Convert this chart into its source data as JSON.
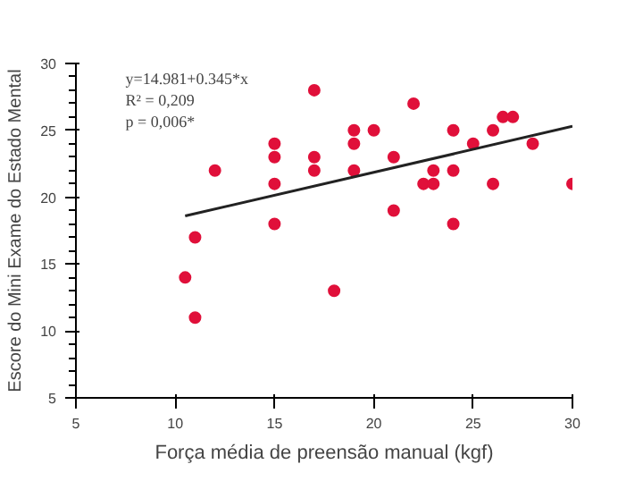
{
  "chart_data": {
    "type": "scatter",
    "xlabel": "Força média de preensão manual (kgf)",
    "ylabel": "Escore do Mini Exame do Estado Mental",
    "xlim": [
      5,
      30
    ],
    "ylim": [
      5,
      30
    ],
    "xticks": [
      5,
      10,
      15,
      20,
      25,
      30
    ],
    "yticks": [
      5,
      10,
      15,
      20,
      25,
      30
    ],
    "grid": false,
    "marker": "circle",
    "annotations": [
      "y=14.981+0.345*x",
      "R² = 0,209",
      "p = 0,006*"
    ],
    "series": [
      {
        "color": "#e0103a",
        "x": [
          10.5,
          11,
          11,
          12,
          15,
          15,
          15,
          15,
          17,
          17,
          17,
          18,
          19,
          19,
          19,
          20,
          21,
          21,
          22,
          22.5,
          23,
          23,
          24,
          24,
          24,
          25,
          26,
          26,
          26.5,
          27,
          28,
          30
        ],
        "values": [
          14,
          17,
          11,
          22,
          24,
          23,
          21,
          18,
          28,
          23,
          22,
          13,
          25,
          24,
          22,
          25,
          23,
          19,
          27,
          21,
          22,
          21,
          25,
          22,
          18,
          24,
          25,
          21,
          26,
          26,
          24,
          21
        ]
      },
      {
        "type": "line",
        "marker": "none",
        "color": "#222222",
        "x": [
          10.5,
          30
        ],
        "values": [
          18.6,
          25.3
        ]
      }
    ]
  }
}
